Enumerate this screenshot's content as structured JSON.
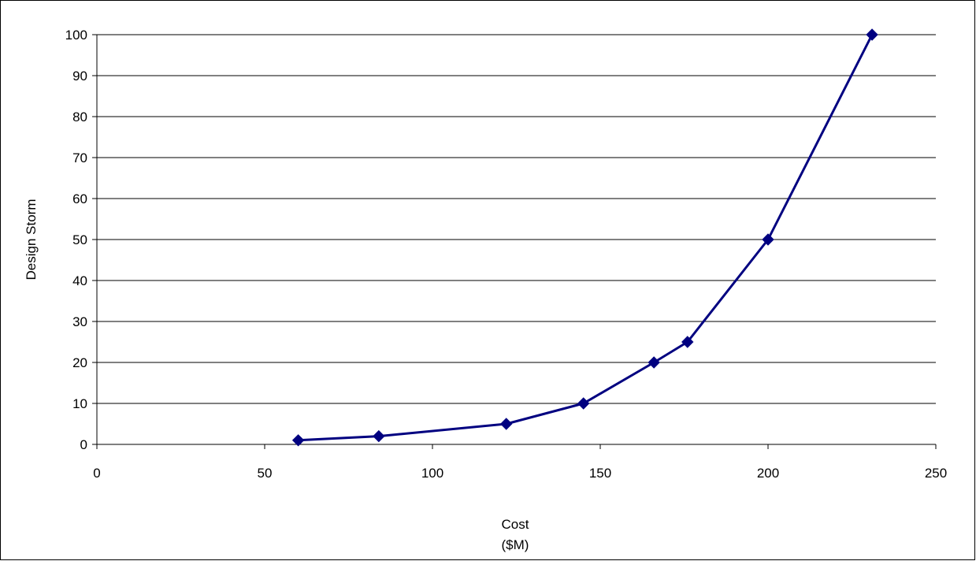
{
  "chart_data": {
    "type": "line",
    "title": "",
    "xlabel": "Cost",
    "xlabel_line2": "($M)",
    "ylabel": "Design Storm",
    "xlim": [
      0,
      250
    ],
    "ylim": [
      0,
      100
    ],
    "xticks": [
      0,
      50,
      100,
      150,
      200,
      250
    ],
    "yticks": [
      0,
      10,
      20,
      30,
      40,
      50,
      60,
      70,
      80,
      90,
      100
    ],
    "grid": "horizontal",
    "legend": "none",
    "series": [
      {
        "x": [
          60,
          84,
          122,
          145,
          166,
          176,
          200,
          231
        ],
        "values": [
          1,
          2,
          5,
          10,
          20,
          25,
          50,
          100
        ],
        "color": "#000080",
        "marker": "diamond"
      }
    ]
  }
}
